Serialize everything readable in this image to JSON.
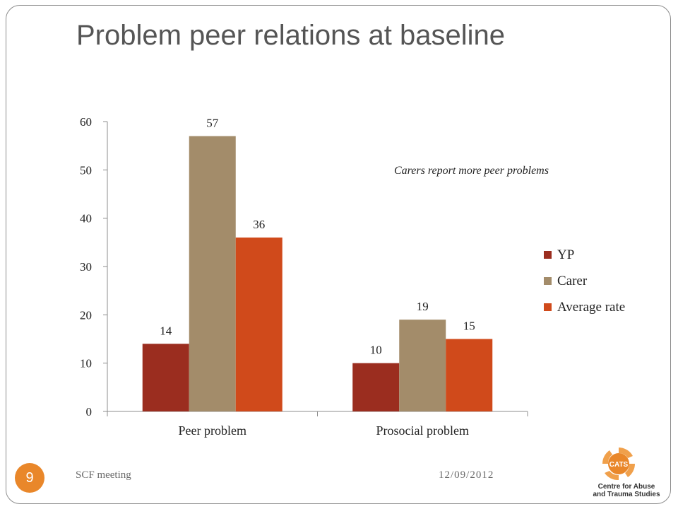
{
  "slide": {
    "title": "Problem peer relations at baseline",
    "annotation": "Carers report more peer problems",
    "footer_left": "SCF meeting",
    "footer_date": "12/09/2012",
    "slide_number": "9",
    "logo": {
      "text": "CATS",
      "caption_line1": "Centre for Abuse",
      "caption_line2": "and Trauma Studies"
    }
  },
  "colors": {
    "YP": "#9b2d1f",
    "Carer": "#a38c6a",
    "Average rate": "#d04a1b",
    "badge": "#e9872a",
    "frame": "#8c8c8c",
    "title": "#555555"
  },
  "chart_data": {
    "type": "bar",
    "title": "",
    "xlabel": "",
    "ylabel": "",
    "categories": [
      "Peer problem",
      "Prosocial problem"
    ],
    "series": [
      {
        "name": "YP",
        "values": [
          14,
          10
        ]
      },
      {
        "name": "Carer",
        "values": [
          57,
          19
        ]
      },
      {
        "name": "Average rate",
        "values": [
          36,
          15
        ]
      }
    ],
    "ylim": [
      0,
      60
    ],
    "yticks": [
      0,
      10,
      20,
      30,
      40,
      50,
      60
    ],
    "grid": false,
    "legend_position": "right",
    "data_labels": true
  }
}
